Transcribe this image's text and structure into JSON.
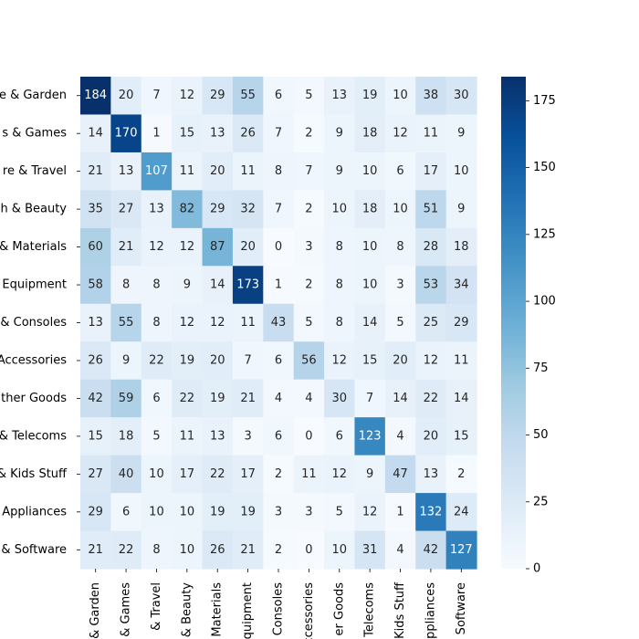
{
  "chart_data": {
    "type": "heatmap",
    "row_labels": [
      "e & Garden",
      "s & Games",
      "re & Travel",
      "h & Beauty",
      "& Materials",
      "Equipment",
      "& Consoles",
      "Accessories",
      "ther Goods",
      "& Telecoms",
      "& Kids Stuff",
      "Appliances",
      "& Software"
    ],
    "col_labels": [
      "& Garden",
      "& Games",
      "& Travel",
      "& Beauty",
      "Materials",
      "quipment",
      "Consoles",
      "ccessories",
      "er Goods",
      "Telecoms",
      "Kids Stuff",
      "ppliances",
      "Software"
    ],
    "values": [
      [
        184,
        20,
        7,
        12,
        29,
        55,
        6,
        5,
        13,
        19,
        10,
        38,
        30
      ],
      [
        14,
        170,
        1,
        15,
        13,
        26,
        7,
        2,
        9,
        18,
        12,
        11,
        9
      ],
      [
        21,
        13,
        107,
        11,
        20,
        11,
        8,
        7,
        9,
        10,
        6,
        17,
        10
      ],
      [
        35,
        27,
        13,
        82,
        29,
        32,
        7,
        2,
        10,
        18,
        10,
        51,
        9
      ],
      [
        60,
        21,
        12,
        12,
        87,
        20,
        0,
        3,
        8,
        10,
        8,
        28,
        18
      ],
      [
        58,
        8,
        8,
        9,
        14,
        173,
        1,
        2,
        8,
        10,
        3,
        53,
        34
      ],
      [
        13,
        55,
        8,
        12,
        12,
        11,
        43,
        5,
        8,
        14,
        5,
        25,
        29
      ],
      [
        26,
        9,
        22,
        19,
        20,
        7,
        6,
        56,
        12,
        15,
        20,
        12,
        11
      ],
      [
        42,
        59,
        6,
        22,
        19,
        21,
        4,
        4,
        30,
        7,
        14,
        22,
        14
      ],
      [
        15,
        18,
        5,
        11,
        13,
        3,
        6,
        0,
        6,
        123,
        4,
        20,
        15
      ],
      [
        27,
        40,
        10,
        17,
        22,
        17,
        2,
        11,
        12,
        9,
        47,
        13,
        2
      ],
      [
        29,
        6,
        10,
        10,
        19,
        19,
        3,
        3,
        5,
        12,
        1,
        132,
        24
      ],
      [
        21,
        22,
        8,
        10,
        26,
        21,
        2,
        0,
        10,
        31,
        4,
        42,
        127
      ]
    ],
    "colormap": "Blues",
    "vmin": 0,
    "vmax": 184,
    "colorbar_ticks": [
      0,
      25,
      50,
      75,
      100,
      125,
      150,
      175
    ],
    "text_dark_color": "#262626",
    "text_light_color": "#ffffff"
  }
}
